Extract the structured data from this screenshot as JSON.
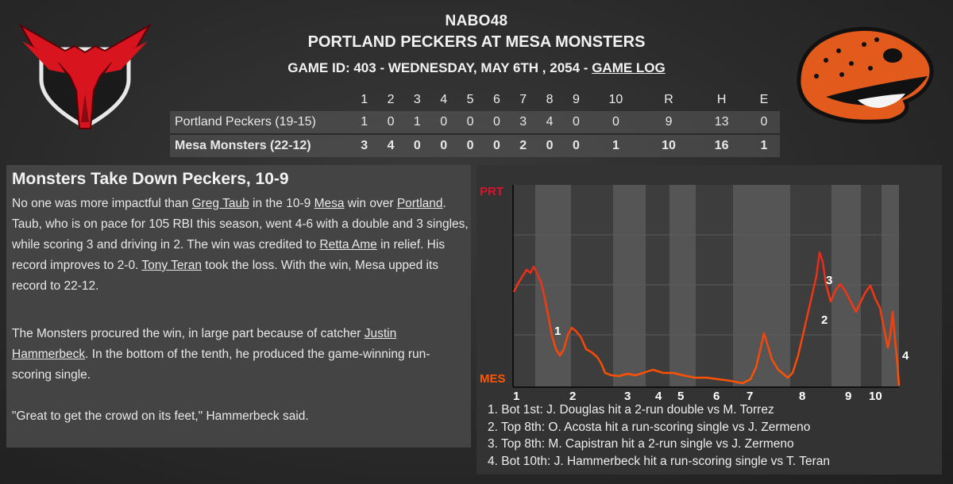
{
  "header": {
    "league": "NABO48",
    "matchup": "PORTLAND PECKERS AT MESA MONSTERS",
    "game_info_prefix": "GAME ID: 403 - WEDNESDAY, MAY 6TH , 2054 - ",
    "game_log_link": "GAME LOG"
  },
  "logos": {
    "away": "portland-peckers-bird-logo",
    "home": "mesa-monsters-lizard-logo"
  },
  "linescore": {
    "columns": [
      "1",
      "2",
      "3",
      "4",
      "5",
      "6",
      "7",
      "8",
      "9",
      "10",
      "R",
      "H",
      "E"
    ],
    "rows": [
      {
        "team": "Portland Peckers (19-15)",
        "innings": [
          "1",
          "0",
          "1",
          "0",
          "0",
          "0",
          "3",
          "4",
          "0",
          "0"
        ],
        "r": "9",
        "h": "13",
        "e": "0",
        "bold": false
      },
      {
        "team": "Mesa Monsters (22-12)",
        "innings": [
          "3",
          "4",
          "0",
          "0",
          "0",
          "0",
          "2",
          "0",
          "0",
          "1"
        ],
        "r": "10",
        "h": "16",
        "e": "1",
        "bold": true
      }
    ]
  },
  "recap": {
    "headline": "Monsters Take Down Peckers, 10-9",
    "p1": [
      {
        "t": "No one was more impactful than "
      },
      {
        "t": "Greg Taub",
        "link": true
      },
      {
        "t": " in the 10-9 "
      },
      {
        "t": "Mesa",
        "link": true
      },
      {
        "t": " win over "
      },
      {
        "t": "Portland",
        "link": true
      },
      {
        "t": ". Taub, who is on pace for 105 RBI this season, went 4-6 with a double and 3 singles, while scoring 3 and driving in 2. The win was credited to "
      },
      {
        "t": "Retta Ame",
        "link": true
      },
      {
        "t": " in relief. His record improves to 2-0. "
      },
      {
        "t": "Tony Teran",
        "link": true
      },
      {
        "t": " took the loss. With the win, Mesa upped its record to 22-12."
      }
    ],
    "p2": [
      {
        "t": "The Monsters procured the win, in large part because of catcher "
      },
      {
        "t": "Justin Hammerbeck",
        "link": true
      },
      {
        "t": ". In the bottom of the tenth, he produced the game-winning run-scoring single."
      }
    ],
    "p3": [
      {
        "t": "\"Great to get the crowd on its feet,\" Hammerbeck said."
      }
    ]
  },
  "win_prob": {
    "top_label": "PRT",
    "bottom_label": "MES",
    "top_color": "#e0102a",
    "bottom_color": "#ff5500",
    "inning_labels": [
      "1",
      "2",
      "3",
      "4",
      "5",
      "6",
      "7",
      "8",
      "9",
      "10"
    ],
    "key_events": [
      {
        "n": "1",
        "text": "1. Bot 1st: J. Douglas hit a 2-run double vs M. Torrez"
      },
      {
        "n": "2",
        "text": "2. Top 8th: O. Acosta hit a run-scoring single vs J. Zermeno"
      },
      {
        "n": "3",
        "text": "3. Top 8th: M. Capistran hit a 2-run single vs J. Zermeno"
      },
      {
        "n": "4",
        "text": "4. Bot 10th: J. Hammerbeck hit a run-scoring single vs T. Teran"
      }
    ]
  }
}
